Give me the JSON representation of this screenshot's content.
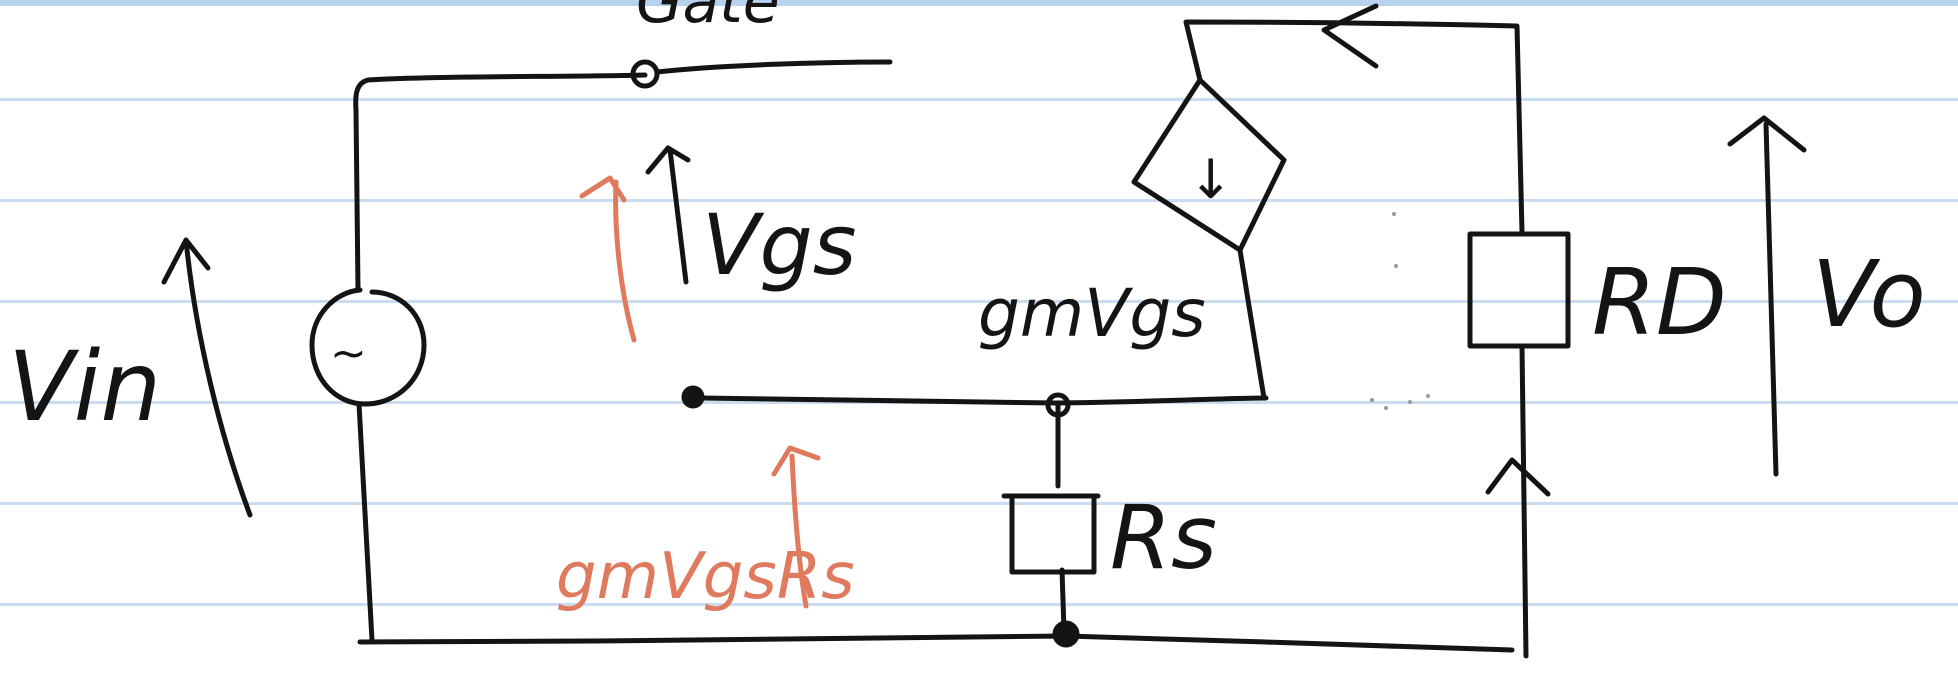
{
  "colors": {
    "ink": "#141414",
    "annotation": "#e07a5f",
    "ruled_line": "#c9dcf2"
  },
  "labels": {
    "gate_partial": "Gate",
    "vin": "Vin",
    "vgs": "Vgs",
    "gm_vgs": "gmVgs",
    "rd": "RD",
    "vo": "Vo",
    "rs": "Rs",
    "gm_vgs_rs": "gmVgsRs"
  },
  "symbols": {
    "ac_source": "~",
    "current_arrow": "↓"
  }
}
